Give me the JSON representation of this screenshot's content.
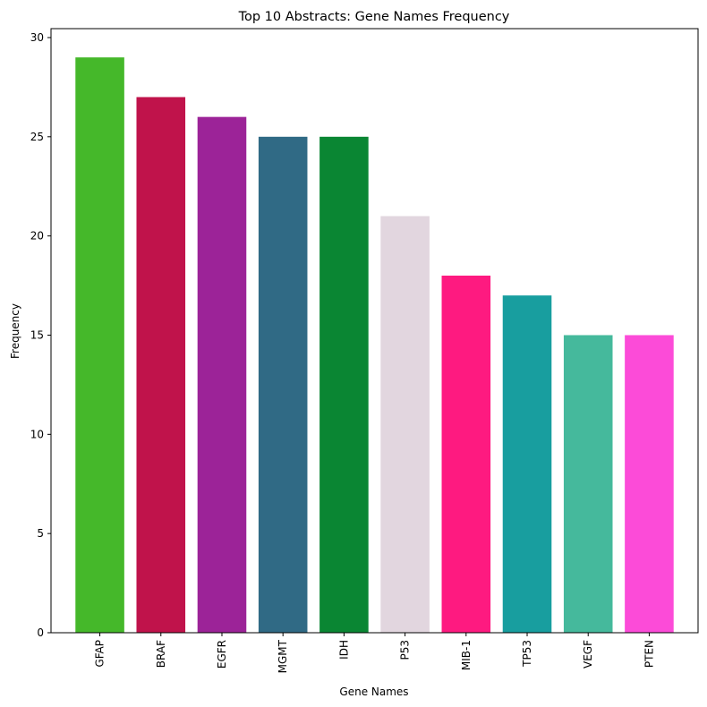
{
  "chart_data": {
    "type": "bar",
    "title": "Top 10 Abstracts: Gene Names Frequency",
    "xlabel": "Gene Names",
    "ylabel": "Frequency",
    "categories": [
      "GFAP",
      "BRAF",
      "EGFR",
      "MGMT",
      "IDH",
      "P53",
      "MIB-1",
      "TP53",
      "VEGF",
      "PTEN"
    ],
    "values": [
      29,
      27,
      26,
      25,
      25,
      21,
      18,
      17,
      15,
      15
    ],
    "colors": [
      "#45b82a",
      "#c0134b",
      "#9c2398",
      "#306a85",
      "#0a8633",
      "#e2d6df",
      "#fe1a80",
      "#189e9f",
      "#45b99c",
      "#fc4bd8"
    ],
    "yticks": [
      0,
      5,
      10,
      15,
      20,
      25,
      30
    ],
    "ylim": [
      0,
      30.45
    ],
    "grid": false,
    "legend": "none"
  }
}
